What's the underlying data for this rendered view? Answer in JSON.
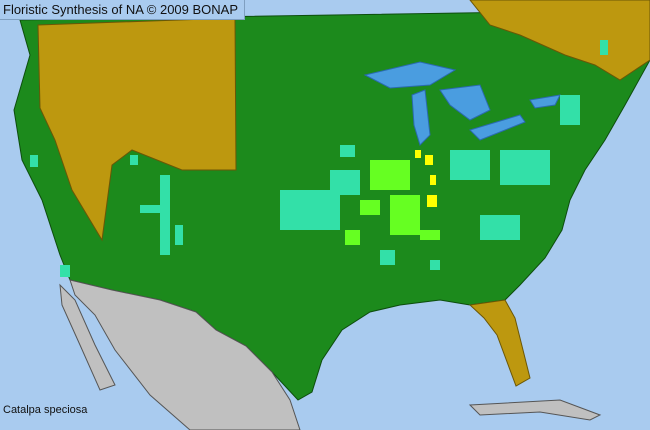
{
  "header": {
    "title": "Floristic Synthesis of NA © 2009 BONAP"
  },
  "map": {
    "species": "Catalpa speciosa",
    "colors": {
      "ocean": "#a9cbef",
      "present_native": "#1c8a1c",
      "state_present": "#bd980f",
      "outside_area": "#c0c0c0",
      "county_present": "#33e0a8",
      "county_native_extra": "#66ff22",
      "county_rare": "#ffff00",
      "lakes": "#4a9de0"
    }
  }
}
